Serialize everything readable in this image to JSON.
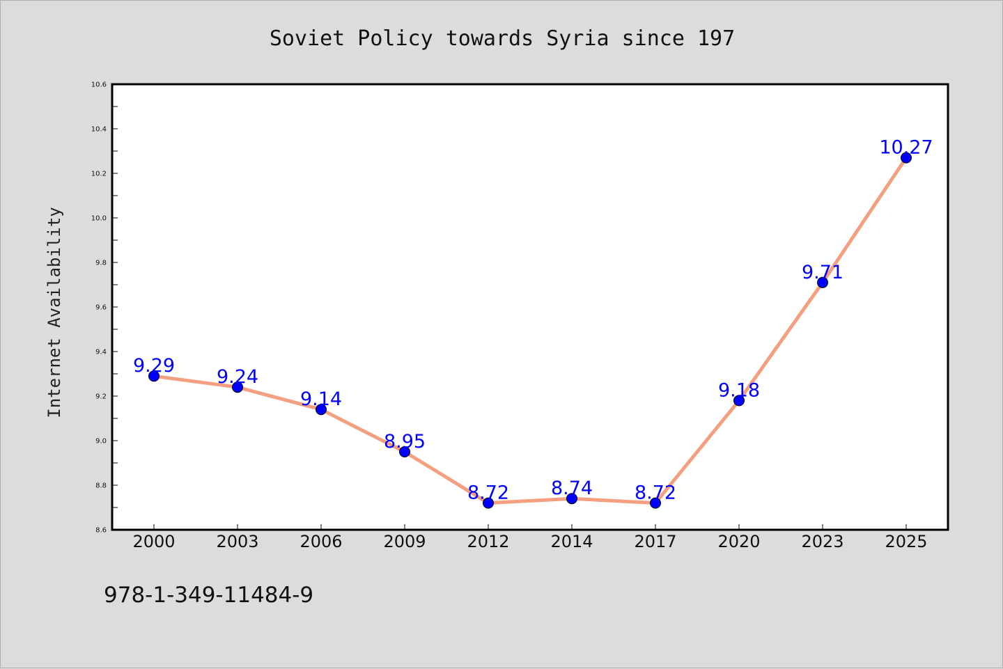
{
  "chart_data": {
    "type": "line",
    "title": "Soviet Policy towards Syria since 197",
    "xlabel": "",
    "ylabel": "Internet Availability",
    "categories": [
      "2000",
      "2003",
      "2006",
      "2009",
      "2012",
      "2014",
      "2017",
      "2020",
      "2023",
      "2025"
    ],
    "values": [
      9.29,
      9.24,
      9.14,
      8.95,
      8.72,
      8.74,
      8.72,
      9.18,
      9.71,
      10.27
    ],
    "data_labels": [
      "9.29",
      "9.24",
      "9.14",
      "8.95",
      "8.72",
      "8.74",
      "8.72",
      "9.18",
      "9.71",
      "10.27"
    ],
    "ylim": [
      8.6,
      10.6
    ],
    "y_ticks": [
      8.6,
      8.8,
      9.0,
      9.2,
      9.4,
      9.6,
      9.8,
      10.0,
      10.2,
      10.4,
      10.6
    ],
    "y_tick_labels": [
      "8.6",
      "8.8",
      "9.0",
      "9.2",
      "9.4",
      "9.6",
      "9.8",
      "10.0",
      "10.2",
      "10.4",
      "10.6"
    ],
    "grid": false,
    "legend": "none",
    "line_color": "#f4a080",
    "marker_color": "#0000ff",
    "label_color": "#0000ff"
  },
  "footer": {
    "code": "978-1-349-11484-9"
  },
  "colors": {
    "background": "#dcdcdc",
    "plot_background": "#ffffff",
    "axis": "#000000"
  }
}
